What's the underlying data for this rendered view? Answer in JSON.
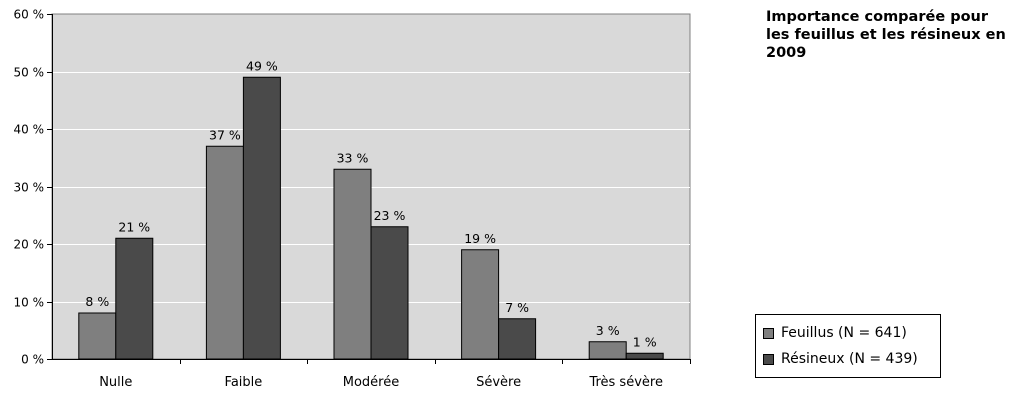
{
  "chart_data": {
    "type": "bar",
    "title": "Importance comparée pour les feuillus et les résineux en 2009",
    "categories": [
      "Nulle",
      "Faible",
      "Modérée",
      "Sévère",
      "Très sévère"
    ],
    "series": [
      {
        "name": "Feuillus (N = 641)",
        "color": "#7f7f7f",
        "values": [
          8,
          37,
          33,
          19,
          3
        ],
        "labels": [
          "8 %",
          "37 %",
          "33 %",
          "19 %",
          "3 %"
        ]
      },
      {
        "name": "Résineux (N = 439)",
        "color": "#4a4a4a",
        "values": [
          21,
          49,
          23,
          7,
          1
        ],
        "labels": [
          "21 %",
          "49 %",
          "23 %",
          "7 %",
          "1 %"
        ]
      }
    ],
    "ylim": [
      0,
      60
    ],
    "yticks": [
      "0 %",
      "10 %",
      "20 %",
      "30 %",
      "40 %",
      "50 %",
      "60 %"
    ],
    "xlabel": "",
    "ylabel": "",
    "grid": true,
    "plot_background": "#d9d9d9",
    "legend_position": "right"
  }
}
